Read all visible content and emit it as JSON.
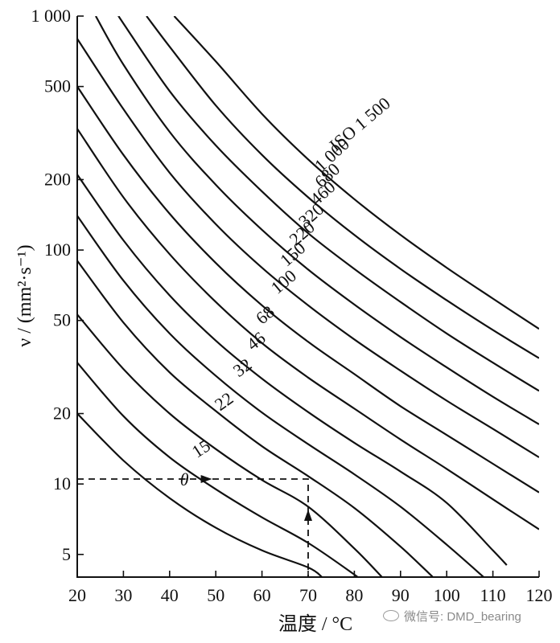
{
  "chart_data": {
    "type": "line",
    "title": "",
    "xlabel": "温度 / °C",
    "ylabel": "ν / (mm²·s⁻¹)",
    "x_scale": "linear",
    "y_scale": "log",
    "xlim": [
      20,
      120
    ],
    "ylim": [
      4,
      1000
    ],
    "x_ticks": [
      20,
      30,
      40,
      50,
      60,
      70,
      80,
      90,
      100,
      110,
      120
    ],
    "x_tick_labels": [
      "20",
      "30",
      "40",
      "50",
      "60",
      "70",
      "80",
      "90",
      "100",
      "110",
      "120"
    ],
    "y_ticks": [
      5,
      10,
      20,
      50,
      100,
      200,
      500,
      1000
    ],
    "y_tick_labels": [
      "5",
      "10",
      "20",
      "50",
      "100",
      "200",
      "500",
      "1 000"
    ],
    "grid": false,
    "series": [
      {
        "name": "15",
        "x": [
          20,
          30,
          40,
          50,
          60,
          70,
          73
        ],
        "y": [
          20,
          12.6,
          8.7,
          6.5,
          5.2,
          4.4,
          4.0
        ]
      },
      {
        "name": "22",
        "x": [
          20,
          30,
          40,
          50,
          60,
          70,
          80,
          80.5
        ],
        "y": [
          33,
          19.5,
          13,
          9.5,
          7.2,
          5.6,
          4.1,
          4.0
        ]
      },
      {
        "name": "32",
        "x": [
          20,
          30,
          40,
          50,
          60,
          70,
          80,
          86
        ],
        "y": [
          53,
          31,
          20,
          14.1,
          10.4,
          8.0,
          5.3,
          4.0
        ]
      },
      {
        "name": "46",
        "x": [
          20,
          30,
          40,
          50,
          60,
          70,
          80,
          90,
          97
        ],
        "y": [
          90,
          49,
          30,
          20.5,
          14.5,
          10.8,
          7.9,
          5.4,
          4.0
        ]
      },
      {
        "name": "68",
        "x": [
          20,
          30,
          40,
          50,
          60,
          70,
          80,
          90,
          100,
          108
        ],
        "y": [
          140,
          74,
          44,
          29,
          20.2,
          14.8,
          11,
          8.0,
          5.5,
          4.0
        ]
      },
      {
        "name": "100",
        "x": [
          20,
          30,
          40,
          50,
          60,
          70,
          80,
          90,
          100,
          110,
          113
        ],
        "y": [
          210,
          110,
          64,
          41,
          28.2,
          20.3,
          15,
          11.3,
          8.3,
          5.2,
          4.5
        ]
      },
      {
        "name": "150",
        "x": [
          20,
          30,
          40,
          50,
          60,
          70,
          80,
          90,
          100,
          110,
          120
        ],
        "y": [
          330,
          168,
          96,
          60,
          40,
          28.5,
          21,
          15.5,
          11.6,
          8.6,
          6.4
        ]
      },
      {
        "name": "220",
        "x": [
          20,
          30,
          40,
          50,
          60,
          70,
          80,
          90,
          100,
          110,
          120
        ],
        "y": [
          500,
          255,
          143,
          88,
          58,
          40.5,
          29.5,
          21.5,
          16.2,
          12.2,
          9.2
        ]
      },
      {
        "name": "320",
        "x": [
          20,
          30,
          40,
          50,
          60,
          70,
          80,
          90,
          100,
          110,
          120
        ],
        "y": [
          800,
          400,
          214,
          129,
          84,
          58,
          41.5,
          30.5,
          22.7,
          17.2,
          13.0
        ]
      },
      {
        "name": "460",
        "x": [
          24,
          30,
          40,
          50,
          60,
          70,
          80,
          90,
          100,
          110,
          120
        ],
        "y": [
          1000,
          620,
          320,
          190,
          122,
          82.5,
          58.5,
          42.5,
          31.5,
          23.6,
          18.0
        ]
      },
      {
        "name": "680",
        "x": [
          29,
          30,
          40,
          50,
          60,
          70,
          80,
          90,
          100,
          110,
          120
        ],
        "y": [
          1000,
          930,
          478,
          280,
          178,
          118,
          83,
          60,
          44,
          33,
          25.0
        ]
      },
      {
        "name": "1 000",
        "x": [
          35,
          40,
          50,
          60,
          70,
          80,
          90,
          100,
          110,
          120
        ],
        "y": [
          1000,
          740,
          415,
          255,
          168,
          116,
          83,
          61,
          45.5,
          34.5
        ]
      },
      {
        "name": "ISO 1 500",
        "x": [
          41,
          50,
          60,
          70,
          80,
          90,
          100,
          110,
          120
        ],
        "y": [
          1000,
          640,
          382,
          244,
          165,
          116,
          84,
          62,
          46
        ]
      }
    ],
    "curve_labels": [
      {
        "text": "15",
        "x": 47.5,
        "y": 13.5,
        "angle": -33
      },
      {
        "text": "22",
        "x": 52.5,
        "y": 21.5,
        "angle": -35
      },
      {
        "text": "32",
        "x": 56.5,
        "y": 30,
        "angle": -36
      },
      {
        "text": "46",
        "x": 59.5,
        "y": 39,
        "angle": -38
      },
      {
        "text": "68",
        "x": 61.5,
        "y": 50.5,
        "angle": -40
      },
      {
        "text": "100",
        "x": 65.5,
        "y": 70,
        "angle": -40
      },
      {
        "text": "150",
        "x": 67.5,
        "y": 92,
        "angle": -41
      },
      {
        "text": "220",
        "x": 69.5,
        "y": 113,
        "angle": -41
      },
      {
        "text": "320",
        "x": 71.5,
        "y": 135,
        "angle": -42
      },
      {
        "text": "460",
        "x": 74,
        "y": 168,
        "angle": -42
      },
      {
        "text": "680",
        "x": 75,
        "y": 200,
        "angle": -43
      },
      {
        "text": "1 000",
        "x": 76,
        "y": 245,
        "angle": -43
      },
      {
        "text": "ISO 1 500",
        "x": 82,
        "y": 330,
        "angle": -40
      }
    ],
    "annotation": {
      "text": "θ",
      "reading_x": 70,
      "reading_y": 10.5,
      "guide_style": "dashed"
    }
  },
  "watermark": {
    "text": "微信号: DMD_bearing"
  }
}
